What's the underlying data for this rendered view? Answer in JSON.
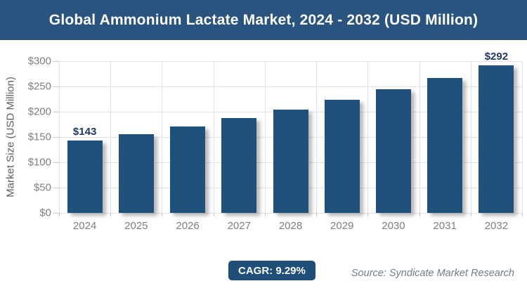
{
  "header": {
    "title": "Global Ammonium Lactate Market, 2024 - 2032 (USD Million)"
  },
  "chart_data": {
    "type": "bar",
    "title": "Global Ammonium Lactate Market, 2024 - 2032 (USD Million)",
    "categories": [
      "2024",
      "2025",
      "2026",
      "2027",
      "2028",
      "2029",
      "2030",
      "2031",
      "2032"
    ],
    "values": [
      143,
      156,
      171,
      187,
      204,
      223,
      244,
      266,
      292
    ],
    "bar_labels": [
      "$143",
      "",
      "",
      "",
      "",
      "",
      "",
      "",
      "$292"
    ],
    "xlabel": "",
    "ylabel": "Market Size (USD Million)",
    "ylim": [
      0,
      300
    ],
    "ytick_step": 50,
    "ytick_prefix": "$",
    "grid": true,
    "legend": false
  },
  "footer": {
    "cagr_label": "CAGR: 9.29%",
    "source": "Source: Syndicate Market Research"
  },
  "colors": {
    "header_bg": "#2a5480",
    "bar": "#20517c",
    "badge_bg": "#1f4e79",
    "grid": "#e2e2e2",
    "tick_mark": "#c9c9c9",
    "tick_text": "#7f7f7f",
    "axis_title_text": "#606060",
    "value_label_text": "#1f3864",
    "source_text": "#6e7e88"
  }
}
